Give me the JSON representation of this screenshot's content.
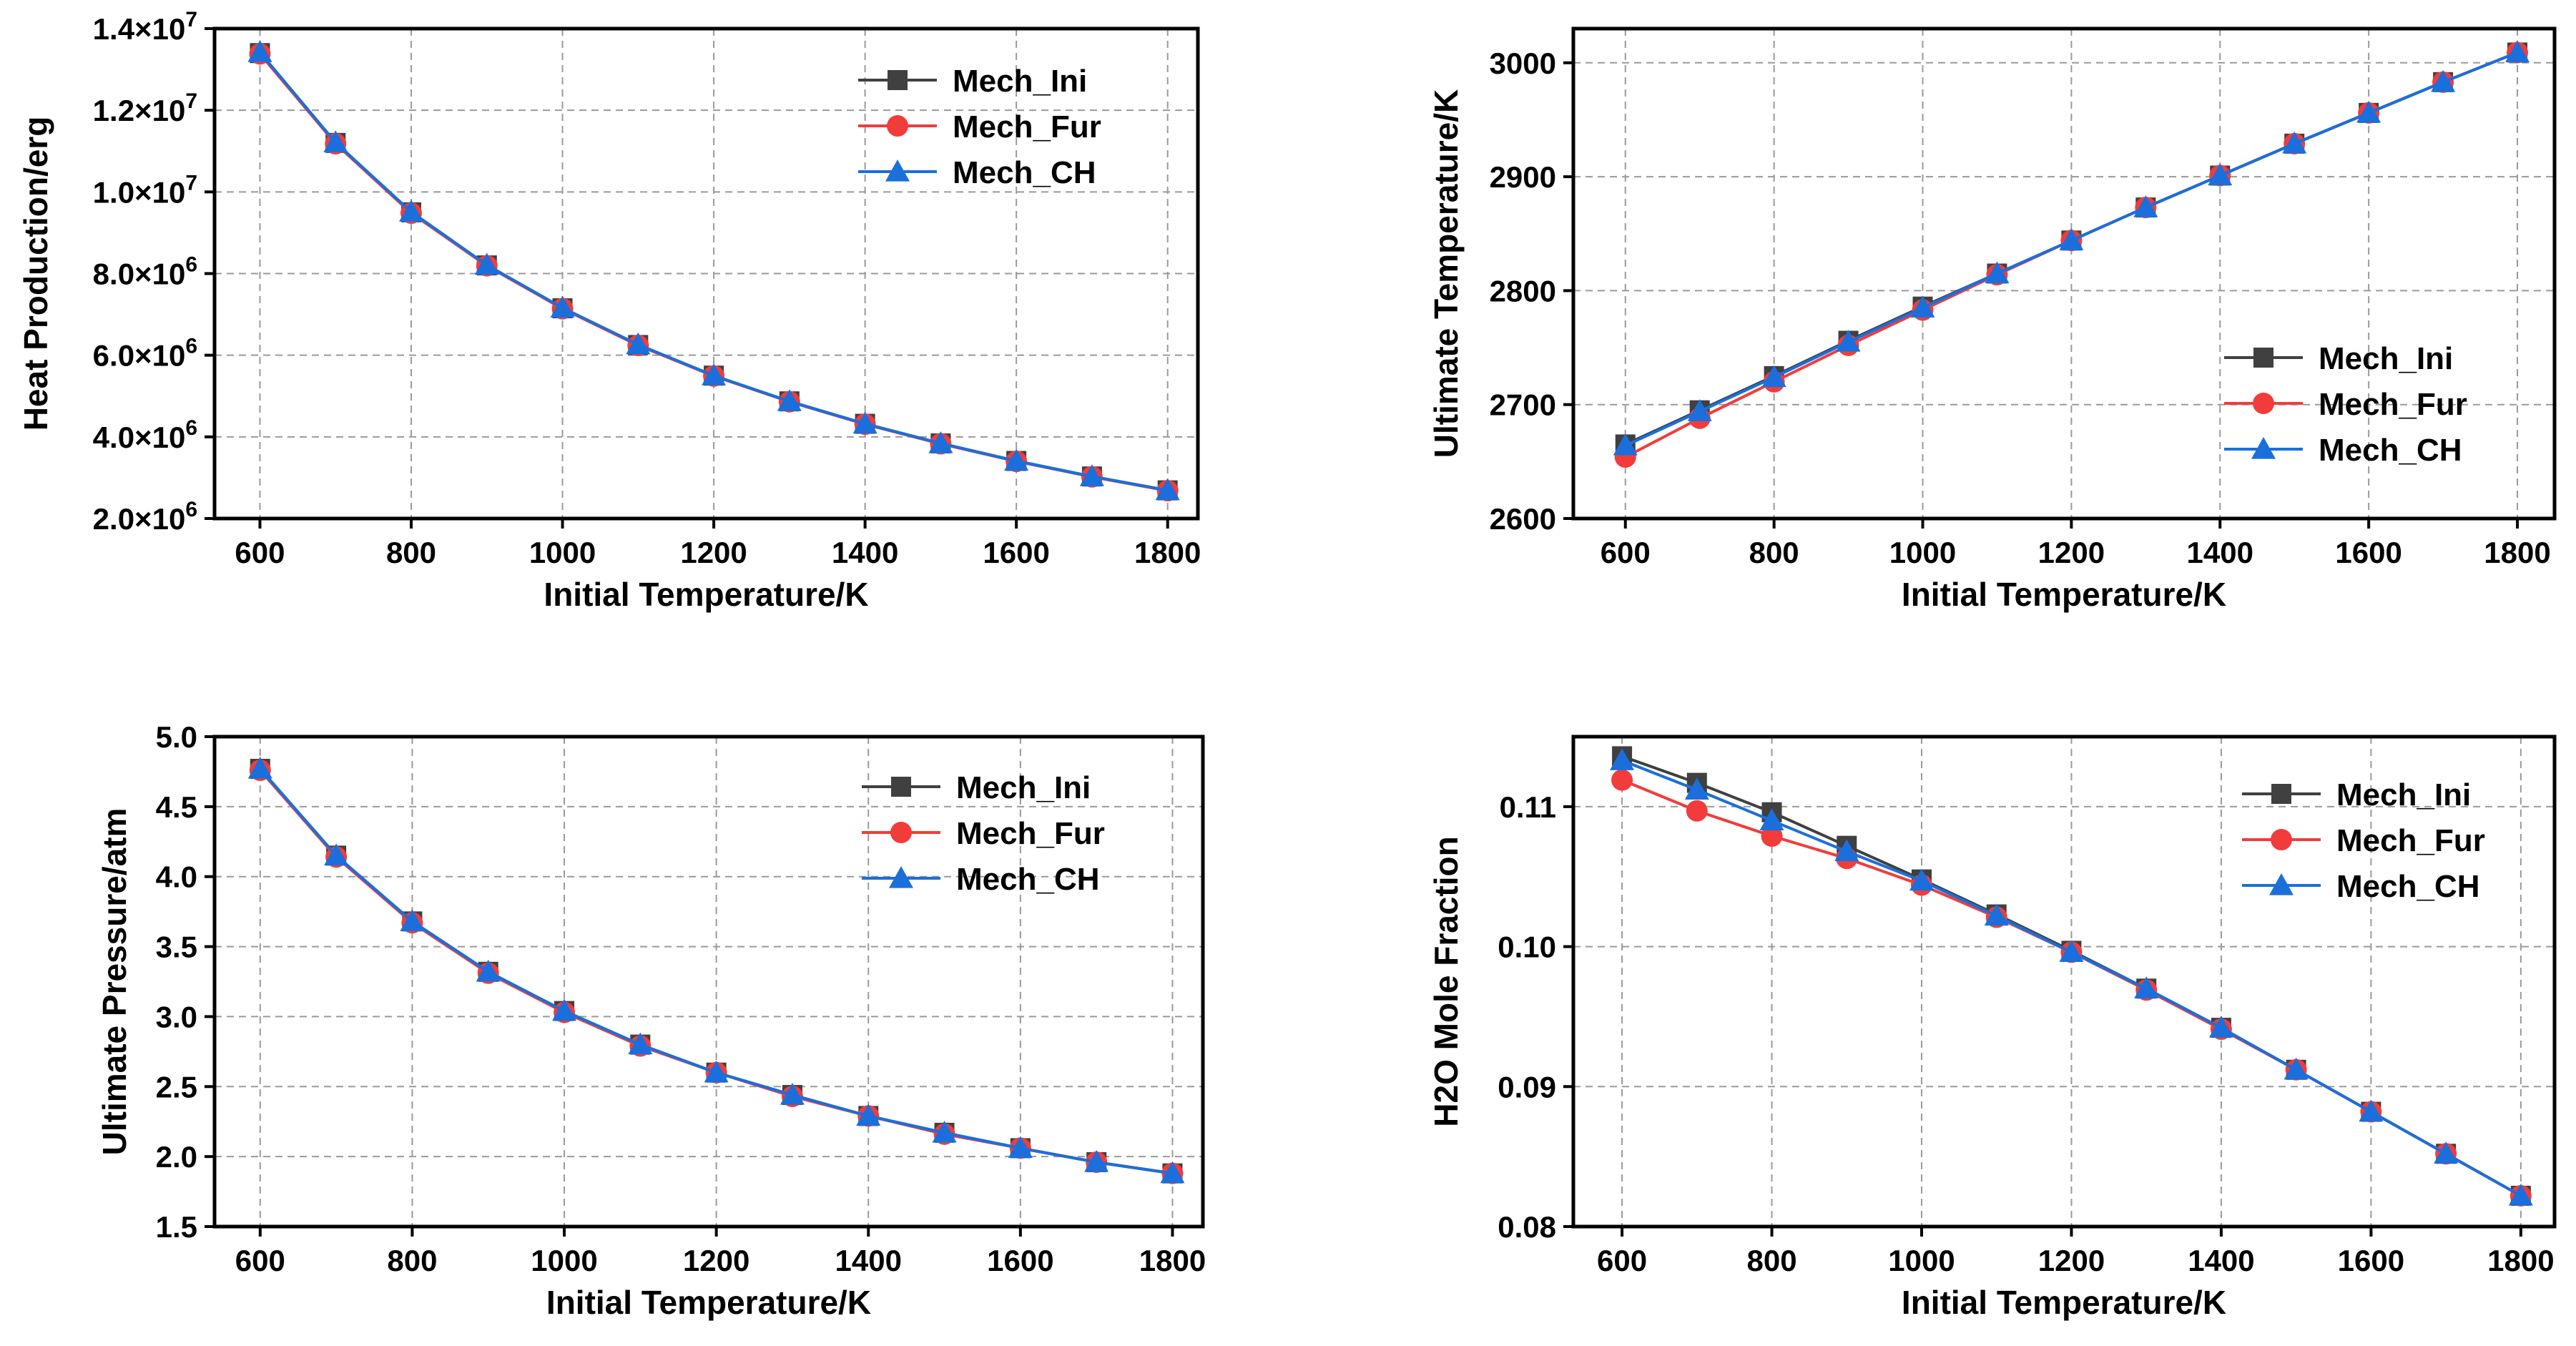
{
  "colors": {
    "Mech_Ini": "#404040",
    "Mech_Fur": "#f23c3c",
    "Mech_CH": "#1a6fdc"
  },
  "markers": {
    "Mech_Ini": "square",
    "Mech_Fur": "circle",
    "Mech_CH": "triangle"
  },
  "chart_data": [
    {
      "type": "line",
      "title": "",
      "xlabel": "Initial Temperature/K",
      "ylabel": "Heat Production/erg",
      "x": [
        600,
        700,
        800,
        900,
        1000,
        1100,
        1200,
        1300,
        1400,
        1500,
        1600,
        1700,
        1800
      ],
      "xlim": [
        540,
        1840
      ],
      "ylim": [
        2000000,
        14000000
      ],
      "xticks": [
        600,
        800,
        1000,
        1200,
        1400,
        1600,
        1800
      ],
      "xtick_labels": [
        "600",
        "800",
        "1000",
        "1200",
        "1400",
        "1600",
        "1800"
      ],
      "yticks": [
        2000000,
        4000000,
        6000000,
        8000000,
        10000000,
        12000000,
        14000000
      ],
      "ytick_labels": [
        {
          "mant": "2.0×10",
          "exp": "6"
        },
        {
          "mant": "4.0×10",
          "exp": "6"
        },
        {
          "mant": "6.0×10",
          "exp": "6"
        },
        {
          "mant": "8.0×10",
          "exp": "6"
        },
        {
          "mant": "1.0×10",
          "exp": "7"
        },
        {
          "mant": "1.2×10",
          "exp": "7"
        },
        {
          "mant": "1.4×10",
          "exp": "7"
        }
      ],
      "grid": true,
      "legend": "top-right",
      "series": [
        {
          "name": "Mech_Ini",
          "values": [
            13400000,
            11200000,
            9500000,
            8200000,
            7150000,
            6250000,
            5500000,
            4870000,
            4320000,
            3840000,
            3410000,
            3030000,
            2690000
          ]
        },
        {
          "name": "Mech_Fur",
          "values": [
            13380000,
            11180000,
            9480000,
            8190000,
            7140000,
            6240000,
            5490000,
            4860000,
            4310000,
            3830000,
            3400000,
            3020000,
            2680000
          ]
        },
        {
          "name": "Mech_CH",
          "values": [
            13420000,
            11210000,
            9510000,
            8210000,
            7160000,
            6260000,
            5500000,
            4870000,
            4320000,
            3840000,
            3410000,
            3030000,
            2690000
          ]
        }
      ]
    },
    {
      "type": "line",
      "title": "",
      "xlabel": "Initial Temperature/K",
      "ylabel": "Ultimate Temperature/K",
      "x": [
        600,
        700,
        800,
        900,
        1000,
        1100,
        1200,
        1300,
        1400,
        1500,
        1600,
        1700,
        1800
      ],
      "xlim": [
        530,
        1850
      ],
      "ylim": [
        2600,
        3030
      ],
      "xticks": [
        600,
        800,
        1000,
        1200,
        1400,
        1600,
        1800
      ],
      "xtick_labels": [
        "600",
        "800",
        "1000",
        "1200",
        "1400",
        "1600",
        "1800"
      ],
      "yticks": [
        2600,
        2700,
        2800,
        2900,
        3000
      ],
      "ytick_labels": [
        {
          "mant": "2600",
          "exp": ""
        },
        {
          "mant": "2700",
          "exp": ""
        },
        {
          "mant": "2800",
          "exp": ""
        },
        {
          "mant": "2900",
          "exp": ""
        },
        {
          "mant": "3000",
          "exp": ""
        }
      ],
      "grid": true,
      "legend": "center-right",
      "series": [
        {
          "name": "Mech_Ini",
          "values": [
            2665,
            2695,
            2725,
            2756,
            2786,
            2815,
            2844,
            2873,
            2901,
            2929,
            2956,
            2983,
            3009
          ]
        },
        {
          "name": "Mech_Fur",
          "values": [
            2654,
            2688,
            2720,
            2752,
            2783,
            2814,
            2844,
            2873,
            2901,
            2929,
            2956,
            2983,
            3009
          ]
        },
        {
          "name": "Mech_CH",
          "values": [
            2664,
            2694,
            2724,
            2755,
            2785,
            2815,
            2844,
            2873,
            2901,
            2929,
            2956,
            2983,
            3009
          ]
        }
      ]
    },
    {
      "type": "line",
      "title": "",
      "xlabel": "Initial Temperature/K",
      "ylabel": "Ultimate Pressure/atm",
      "x": [
        600,
        700,
        800,
        900,
        1000,
        1100,
        1200,
        1300,
        1400,
        1500,
        1600,
        1700,
        1800
      ],
      "xlim": [
        540,
        1840
      ],
      "ylim": [
        1.5,
        5.0
      ],
      "xticks": [
        600,
        800,
        1000,
        1200,
        1400,
        1600,
        1800
      ],
      "xtick_labels": [
        "600",
        "800",
        "1000",
        "1200",
        "1400",
        "1600",
        "1800"
      ],
      "yticks": [
        1.5,
        2.0,
        2.5,
        3.0,
        3.5,
        4.0,
        4.5,
        5.0
      ],
      "ytick_labels": [
        {
          "mant": "1.5",
          "exp": ""
        },
        {
          "mant": "2.0",
          "exp": ""
        },
        {
          "mant": "2.5",
          "exp": ""
        },
        {
          "mant": "3.0",
          "exp": ""
        },
        {
          "mant": "3.5",
          "exp": ""
        },
        {
          "mant": "4.0",
          "exp": ""
        },
        {
          "mant": "4.5",
          "exp": ""
        },
        {
          "mant": "5.0",
          "exp": ""
        }
      ],
      "grid": true,
      "legend": "top-right",
      "series": [
        {
          "name": "Mech_Ini",
          "values": [
            4.77,
            4.15,
            3.68,
            3.32,
            3.04,
            2.8,
            2.6,
            2.44,
            2.29,
            2.17,
            2.06,
            1.96,
            1.88
          ]
        },
        {
          "name": "Mech_Fur",
          "values": [
            4.76,
            4.14,
            3.67,
            3.31,
            3.03,
            2.79,
            2.6,
            2.43,
            2.29,
            2.16,
            2.06,
            1.96,
            1.88
          ]
        },
        {
          "name": "Mech_CH",
          "values": [
            4.77,
            4.15,
            3.68,
            3.32,
            3.04,
            2.8,
            2.6,
            2.44,
            2.29,
            2.17,
            2.06,
            1.96,
            1.88
          ]
        }
      ]
    },
    {
      "type": "line",
      "title": "",
      "xlabel": "Initial Temperature/K",
      "ylabel": "H2O Mole Fraction",
      "x": [
        600,
        700,
        800,
        900,
        1000,
        1100,
        1200,
        1300,
        1400,
        1500,
        1600,
        1700,
        1800
      ],
      "xlim": [
        535,
        1845
      ],
      "ylim": [
        0.08,
        0.115
      ],
      "xticks": [
        600,
        800,
        1000,
        1200,
        1400,
        1600,
        1800
      ],
      "xtick_labels": [
        "600",
        "800",
        "1000",
        "1200",
        "1400",
        "1600",
        "1800"
      ],
      "yticks": [
        0.08,
        0.09,
        0.1,
        0.11
      ],
      "ytick_labels": [
        {
          "mant": "0.08",
          "exp": ""
        },
        {
          "mant": "0.09",
          "exp": ""
        },
        {
          "mant": "0.10",
          "exp": ""
        },
        {
          "mant": "0.11",
          "exp": ""
        }
      ],
      "grid": true,
      "legend": "top-right",
      "series": [
        {
          "name": "Mech_Ini",
          "values": [
            0.1136,
            0.1117,
            0.1096,
            0.1072,
            0.1048,
            0.1023,
            0.0997,
            0.097,
            0.0942,
            0.0912,
            0.0882,
            0.0852,
            0.0822
          ]
        },
        {
          "name": "Mech_Fur",
          "values": [
            0.1119,
            0.1097,
            0.1079,
            0.1063,
            0.1044,
            0.1021,
            0.0996,
            0.0969,
            0.0941,
            0.0912,
            0.0882,
            0.0852,
            0.0822
          ]
        },
        {
          "name": "Mech_CH",
          "values": [
            0.1133,
            0.1112,
            0.109,
            0.1068,
            0.1047,
            0.1022,
            0.0996,
            0.097,
            0.0942,
            0.0912,
            0.0882,
            0.0852,
            0.0822
          ]
        }
      ]
    }
  ]
}
